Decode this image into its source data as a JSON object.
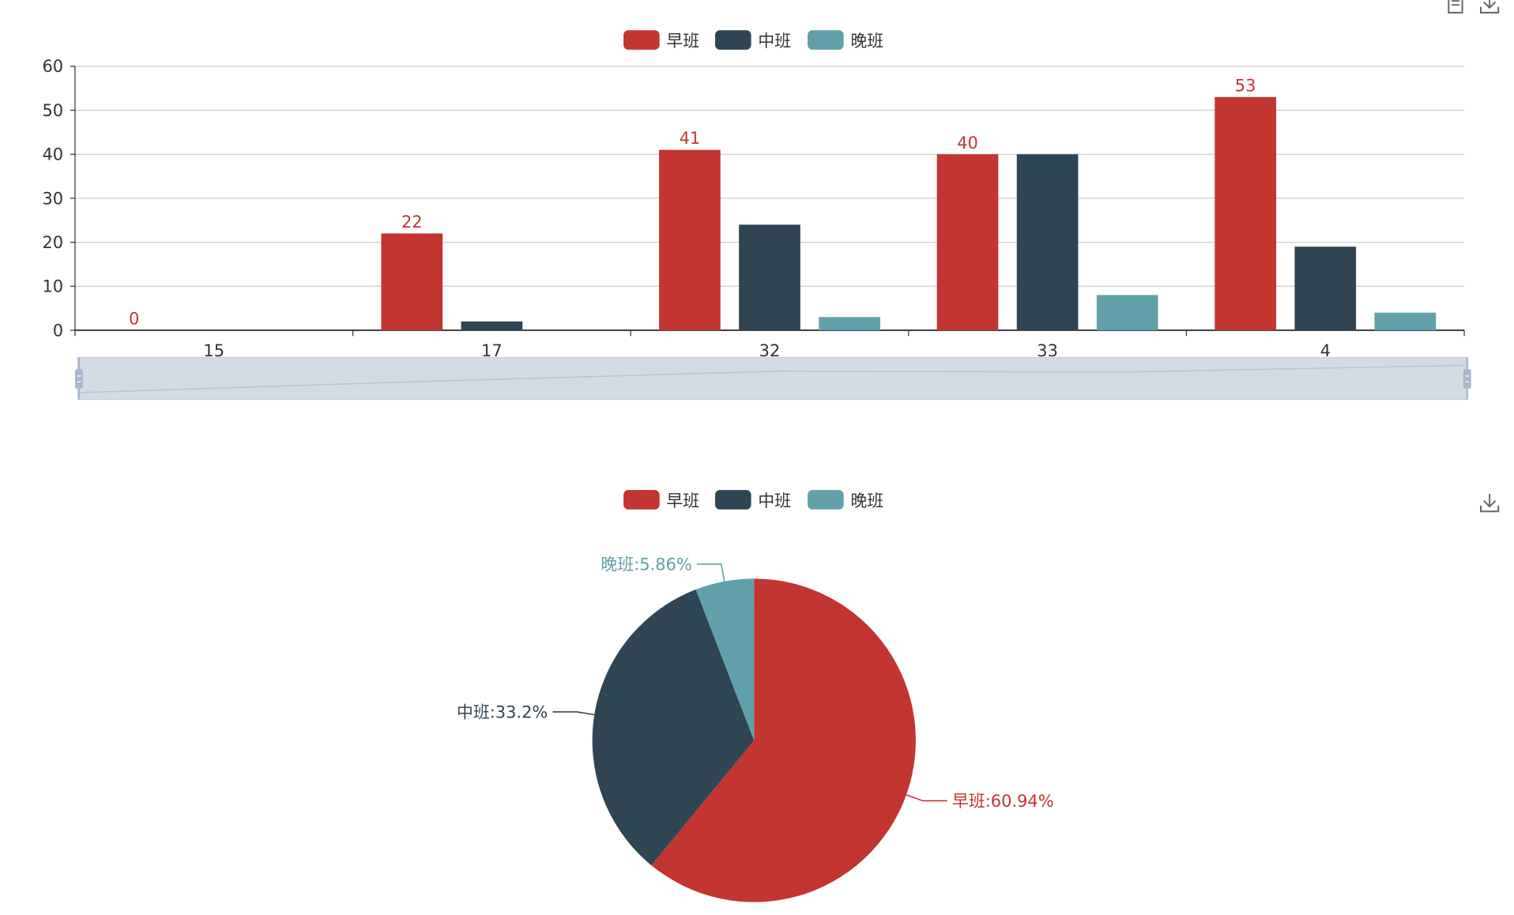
{
  "toolbox": {
    "top": [
      "data-view-icon",
      "save-image-icon"
    ],
    "bottom": [
      "save-image-icon"
    ]
  },
  "colors": {
    "早班": "#c23531",
    "中班": "#2f4554",
    "晚班": "#61a0a8",
    "axis": "#333333",
    "grid": "#cccccc",
    "zoom_fill": "#d4dbe5",
    "zoom_handle": "#a7b7cc"
  },
  "legend": {
    "bar": [
      "早班",
      "中班",
      "晚班"
    ],
    "pie": [
      "早班",
      "中班",
      "晚班"
    ]
  },
  "chart_data": [
    {
      "type": "bar",
      "categories": [
        "15",
        "17",
        "32",
        "33",
        "4"
      ],
      "series": [
        {
          "name": "早班",
          "values": [
            0,
            22,
            41,
            40,
            53
          ]
        },
        {
          "name": "中班",
          "values": [
            0,
            2,
            24,
            40,
            19
          ]
        },
        {
          "name": "晚班",
          "values": [
            0,
            0,
            3,
            8,
            4
          ]
        }
      ],
      "data_labels_series": "早班",
      "ylim": [
        0,
        60
      ],
      "yticks": [
        0,
        10,
        20,
        30,
        40,
        50,
        60
      ],
      "grid": true,
      "legend_position": "top",
      "datazoom": {
        "start_percent": 0,
        "end_percent": 100
      }
    },
    {
      "type": "pie",
      "slices": [
        {
          "name": "早班",
          "percent": 60.94,
          "label": "早班:60.94%"
        },
        {
          "name": "中班",
          "percent": 33.2,
          "label": "中班:33.2%"
        },
        {
          "name": "晚班",
          "percent": 5.86,
          "label": "晚班:5.86%"
        }
      ],
      "legend_position": "top"
    }
  ]
}
